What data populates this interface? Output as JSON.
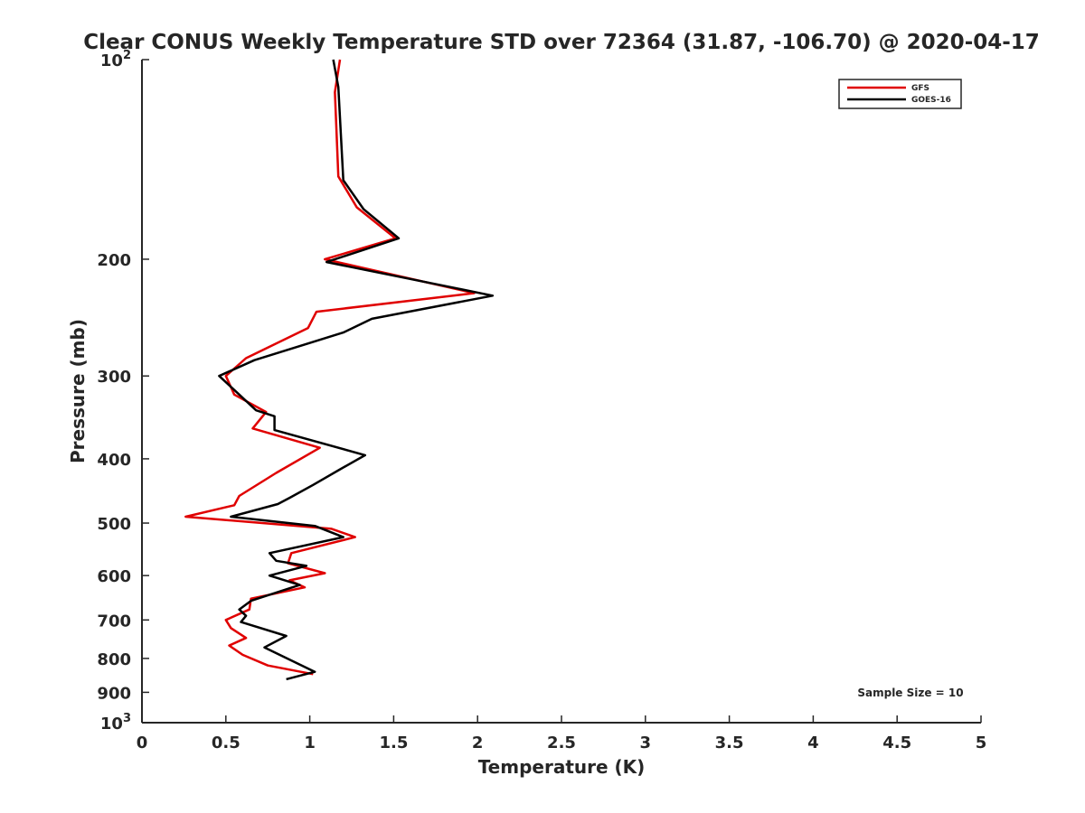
{
  "chart_data": {
    "type": "line",
    "title": "Clear CONUS Weekly Temperature STD over 72364 (31.87, -106.70) @ 2020-04-17",
    "xlabel": "Temperature (K)",
    "ylabel": "Pressure (mb)",
    "xlim": [
      0,
      5
    ],
    "ylim": [
      100,
      1000
    ],
    "y_scale": "log",
    "y_reversed": true,
    "grid": false,
    "legend_position": "top-right",
    "x_ticks": [
      0,
      0.5,
      1,
      1.5,
      2,
      2.5,
      3,
      3.5,
      4,
      4.5,
      5
    ],
    "x_tick_labels": [
      "0",
      "0.5",
      "1",
      "1.5",
      "2",
      "2.5",
      "3",
      "3.5",
      "4",
      "4.5",
      "5"
    ],
    "y_ticks": [
      {
        "value": 100,
        "base": "10",
        "exp": "2"
      },
      {
        "value": 200,
        "label": "200"
      },
      {
        "value": 300,
        "label": "300"
      },
      {
        "value": 400,
        "label": "400"
      },
      {
        "value": 500,
        "label": "500"
      },
      {
        "value": 600,
        "label": "600"
      },
      {
        "value": 700,
        "label": "700"
      },
      {
        "value": 800,
        "label": "800"
      },
      {
        "value": 900,
        "label": "900"
      },
      {
        "value": 1000,
        "base": "10",
        "exp": "3"
      }
    ],
    "annotation": "Sample Size = 10",
    "series": [
      {
        "name": "GFS",
        "color": "#e00000",
        "x": [
          1.18,
          1.15,
          1.17,
          1.28,
          1.51,
          1.09,
          1.98,
          1.04,
          0.99,
          0.62,
          0.5,
          0.55,
          0.74,
          0.66,
          1.06,
          0.8,
          0.58,
          0.55,
          0.26,
          1.13,
          1.27,
          0.89,
          0.87,
          1.09,
          0.88,
          0.97,
          0.65,
          0.64,
          0.5,
          0.53,
          0.62,
          0.52,
          0.6,
          0.75,
          1.02
        ],
        "y": [
          100,
          112,
          150,
          167,
          186,
          200,
          225,
          240,
          254,
          282,
          300,
          320,
          340,
          360,
          385,
          420,
          455,
          470,
          489,
          510,
          525,
          555,
          575,
          595,
          610,
          625,
          650,
          675,
          700,
          720,
          745,
          765,
          790,
          820,
          845
        ]
      },
      {
        "name": "GOES-16",
        "color": "#000000",
        "x": [
          1.14,
          1.17,
          1.2,
          1.32,
          1.53,
          1.1,
          2.09,
          1.37,
          1.2,
          0.67,
          0.46,
          0.58,
          0.68,
          0.79,
          0.79,
          1.33,
          1.18,
          1.02,
          0.88,
          0.81,
          0.53,
          1.03,
          1.2,
          0.76,
          0.8,
          0.98,
          0.76,
          0.94,
          0.65,
          0.58,
          0.62,
          0.59,
          0.86,
          0.73,
          1.03,
          0.86
        ],
        "y": [
          100,
          110,
          152,
          168,
          186,
          202,
          227,
          246,
          258,
          284,
          300,
          320,
          338,
          345,
          362,
          395,
          415,
          438,
          458,
          468,
          489,
          505,
          525,
          555,
          570,
          580,
          600,
          620,
          655,
          675,
          690,
          705,
          740,
          770,
          838,
          860
        ]
      }
    ]
  }
}
